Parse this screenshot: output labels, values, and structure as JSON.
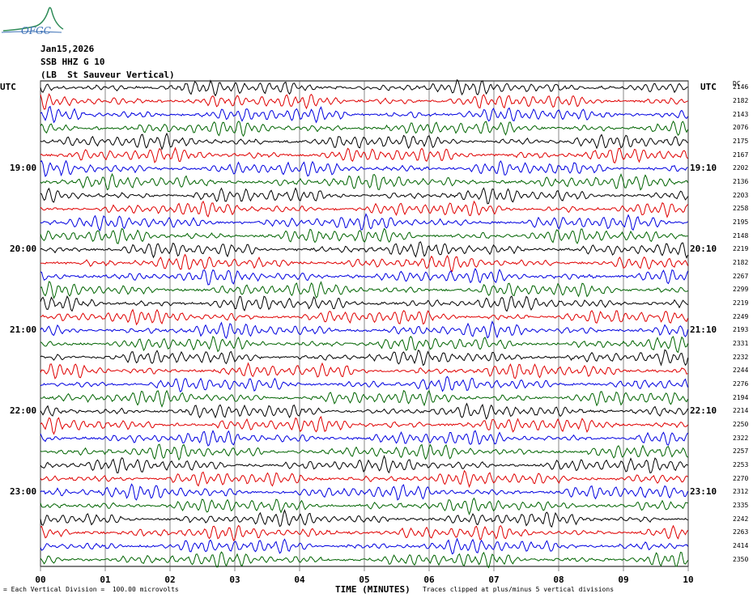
{
  "logo": {
    "text": "OFGC"
  },
  "header": {
    "date": "Jan15,2026",
    "channel": "SSB HHZ G 10",
    "station": "(LB  St Sauveur Vertical)"
  },
  "chart_data": {
    "type": "line",
    "left_axis_title": "UTC",
    "right_axis_title": "UTC",
    "dc_header": "DC",
    "left_labels": [
      {
        "row": 6,
        "text": "19:00"
      },
      {
        "row": 12,
        "text": "20:00"
      },
      {
        "row": 18,
        "text": "21:00"
      },
      {
        "row": 24,
        "text": "22:00"
      },
      {
        "row": 30,
        "text": "23:00"
      }
    ],
    "right_labels": [
      {
        "row": 6,
        "text": "19:10"
      },
      {
        "row": 12,
        "text": "20:10"
      },
      {
        "row": 18,
        "text": "21:10"
      },
      {
        "row": 24,
        "text": "22:10"
      },
      {
        "row": 30,
        "text": "23:10"
      }
    ],
    "dc_offsets": [
      "2146",
      "2182",
      "2143",
      "2076",
      "2175",
      "2167",
      "2202",
      "2136",
      "2203",
      "2258",
      "2195",
      "2148",
      "2219",
      "2182",
      "2267",
      "2299",
      "2219",
      "2249",
      "2193",
      "2331",
      "2232",
      "2244",
      "2276",
      "2194",
      "2214",
      "2250",
      "2322",
      "2257",
      "2253",
      "2270",
      "2312",
      "2335",
      "2242",
      "2263",
      "2414",
      "2350"
    ],
    "trace_colors": [
      "#000000",
      "#e00000",
      "#0000e0",
      "#006400"
    ],
    "x_ticks": [
      "00",
      "01",
      "02",
      "03",
      "04",
      "05",
      "06",
      "07",
      "08",
      "09",
      "10"
    ],
    "xlim": [
      0,
      10
    ],
    "xlabel": "TIME (MINUTES)",
    "grid": true
  },
  "footer": {
    "scale_note": "= Each Vertical Division =  100.00 microvolts",
    "clip_note": "Traces clipped at plus/minus 5 vertical divisions"
  }
}
